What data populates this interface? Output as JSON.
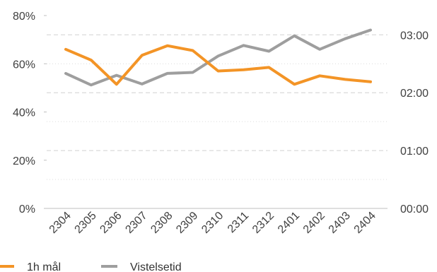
{
  "chart_data": {
    "type": "line",
    "title": "",
    "categories": [
      "2304",
      "2305",
      "2306",
      "2307",
      "2308",
      "2309",
      "2310",
      "2311",
      "2312",
      "2401",
      "2402",
      "2403",
      "2404"
    ],
    "y_left": {
      "ticks": [
        {
          "value": 0,
          "label": "0%"
        },
        {
          "value": 20,
          "label": "20%"
        },
        {
          "value": 40,
          "label": "40%"
        },
        {
          "value": 60,
          "label": "60%"
        },
        {
          "value": 80,
          "label": "80%"
        }
      ],
      "ylim": [
        0,
        80
      ]
    },
    "y_right": {
      "unit": "hours",
      "ticks": [
        {
          "value": 0,
          "label": "00:00"
        },
        {
          "value": 60,
          "label": "01:00"
        },
        {
          "value": 120,
          "label": "02:00"
        },
        {
          "value": 180,
          "label": "03:00"
        }
      ],
      "ylim": [
        0,
        200
      ]
    },
    "grid": {
      "dashed_major": true,
      "dotted_minor": true
    },
    "legend_position": "bottom-left",
    "series": [
      {
        "name": "1h mål",
        "axis": "left",
        "color": "#f39426",
        "values": [
          66,
          61.5,
          51.5,
          63.5,
          67.5,
          65.5,
          57,
          57.5,
          58.5,
          51.5,
          55,
          53.5,
          52.5
        ]
      },
      {
        "name": "Vistelsetid",
        "axis": "right",
        "unit": "minutes",
        "values": [
          140,
          128,
          138,
          129,
          140,
          141,
          158,
          169,
          163,
          179,
          165,
          176,
          185
        ],
        "color": "#9e9e9e"
      }
    ]
  }
}
